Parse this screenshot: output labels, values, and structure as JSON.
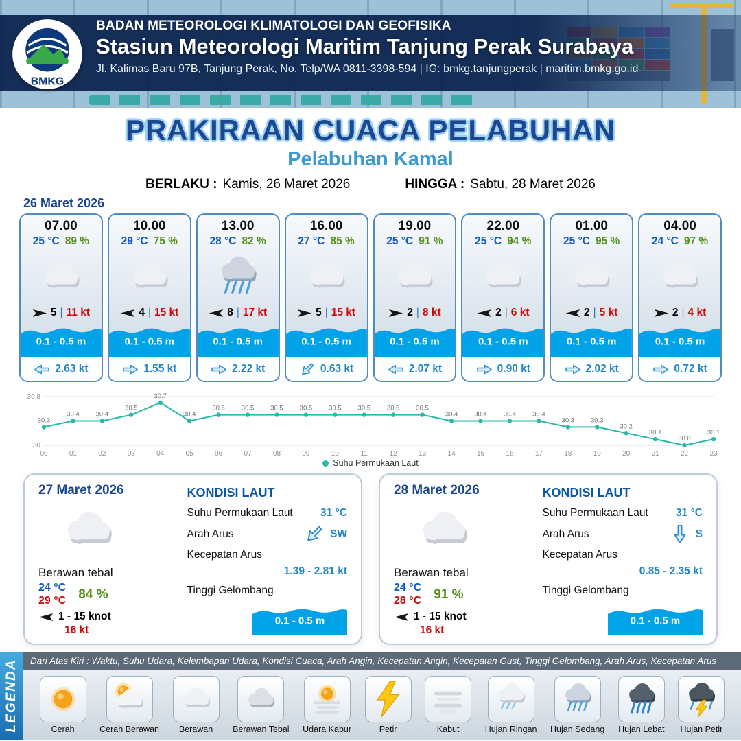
{
  "header": {
    "logo_text": "BMKG",
    "agency": "BADAN METEOROLOGI KLIMATOLOGI DAN GEOFISIKA",
    "station": "Stasiun Meteorologi Maritim Tanjung Perak Surabaya",
    "address": "Jl. Kalimas Baru 97B, Tanjung Perak, No. Telp/WA 0811-3398-594 | IG: bmkg.tanjungperak | maritim.bmkg.go.id"
  },
  "title": {
    "main": "PRAKIRAAN CUACA PELABUHAN",
    "port": "Pelabuhan Kamal",
    "valid_label": "BERLAKU :",
    "valid_value": "Kamis, 26 Maret 2026",
    "until_label": "HINGGA :",
    "until_value": "Sabtu, 28 Maret 2026"
  },
  "hourly": {
    "date": "26 Maret 2026",
    "cards": [
      {
        "time": "07.00",
        "temp": "25 °C",
        "humidity": "89 %",
        "icon": "berawan",
        "wind_dir": "E",
        "wind_num": "5",
        "wind_speed": "11 kt",
        "wave": "0.1 - 0.5 m",
        "current_dir": "W",
        "current_speed": "2.63 kt"
      },
      {
        "time": "10.00",
        "temp": "29 °C",
        "humidity": "75 %",
        "icon": "berawan",
        "wind_dir": "W",
        "wind_num": "4",
        "wind_speed": "15 kt",
        "wave": "0.1 - 0.5 m",
        "current_dir": "E",
        "current_speed": "1.55 kt"
      },
      {
        "time": "13.00",
        "temp": "28 °C",
        "humidity": "82 %",
        "icon": "hujan-sedang",
        "wind_dir": "W",
        "wind_num": "8",
        "wind_speed": "17 kt",
        "wave": "0.1 - 0.5 m",
        "current_dir": "E",
        "current_speed": "2.22 kt"
      },
      {
        "time": "16.00",
        "temp": "27 °C",
        "humidity": "85 %",
        "icon": "berawan",
        "wind_dir": "E",
        "wind_num": "5",
        "wind_speed": "15 kt",
        "wave": "0.1 - 0.5 m",
        "current_dir": "SW",
        "current_speed": "0.63 kt"
      },
      {
        "time": "19.00",
        "temp": "25 °C",
        "humidity": "91 %",
        "icon": "berawan",
        "wind_dir": "E",
        "wind_num": "2",
        "wind_speed": "8 kt",
        "wave": "0.1 - 0.5 m",
        "current_dir": "W",
        "current_speed": "2.07 kt"
      },
      {
        "time": "22.00",
        "temp": "25 °C",
        "humidity": "94 %",
        "icon": "berawan",
        "wind_dir": "W",
        "wind_num": "2",
        "wind_speed": "6 kt",
        "wave": "0.1 - 0.5 m",
        "current_dir": "E",
        "current_speed": "0.90 kt"
      },
      {
        "time": "01.00",
        "temp": "25 °C",
        "humidity": "95 %",
        "icon": "berawan",
        "wind_dir": "W",
        "wind_num": "2",
        "wind_speed": "5 kt",
        "wave": "0.1 - 0.5 m",
        "current_dir": "E",
        "current_speed": "2.02 kt"
      },
      {
        "time": "04.00",
        "temp": "24 °C",
        "humidity": "97 %",
        "icon": "berawan",
        "wind_dir": "E",
        "wind_num": "2",
        "wind_speed": "4 kt",
        "wave": "0.1 - 0.5 m",
        "current_dir": "E",
        "current_speed": "0.72 kt"
      }
    ]
  },
  "chart_data": {
    "type": "line",
    "legend": "Suhu Permukaan Laut",
    "x": [
      "00",
      "01",
      "02",
      "03",
      "04",
      "05",
      "06",
      "07",
      "08",
      "09",
      "10",
      "11",
      "12",
      "13",
      "14",
      "15",
      "16",
      "17",
      "18",
      "19",
      "20",
      "21",
      "22",
      "23"
    ],
    "values": [
      30.3,
      30.4,
      30.4,
      30.5,
      30.7,
      30.4,
      30.5,
      30.5,
      30.5,
      30.5,
      30.5,
      30.5,
      30.5,
      30.5,
      30.4,
      30.4,
      30.4,
      30.4,
      30.3,
      30.3,
      30.2,
      30.1,
      30.0,
      30.1
    ],
    "ylim": [
      30,
      30.8
    ],
    "yticks": [
      "30.8",
      "30"
    ],
    "line_color": "#29b9a8",
    "grid": true,
    "legend_position": "bottom"
  },
  "days": [
    {
      "date": "27 Maret 2026",
      "icon": "berawan",
      "condition": "Berawan tebal",
      "temp_min": "24 °C",
      "temp_max": "29 °C",
      "humidity": "84 %",
      "wind_dir": "W",
      "wind_range": "1 - 15 knot",
      "gust": "16 kt",
      "sea": {
        "title": "KONDISI LAUT",
        "sst_label": "Suhu Permukaan Laut",
        "sst": "31 °C",
        "current_dir_label": "Arah Arus",
        "current_dir": "SW",
        "current_speed_label": "Kecepatan Arus",
        "current_speed": "1.39 - 2.81 kt",
        "wave_label": "Tinggi Gelombang",
        "wave": "0.1 - 0.5 m"
      }
    },
    {
      "date": "28 Maret 2026",
      "icon": "berawan",
      "condition": "Berawan tebal",
      "temp_min": "24 °C",
      "temp_max": "28 °C",
      "humidity": "91 %",
      "wind_dir": "W",
      "wind_range": "1 - 15 knot",
      "gust": "16 kt",
      "sea": {
        "title": "KONDISI LAUT",
        "sst_label": "Suhu Permukaan Laut",
        "sst": "31 °C",
        "current_dir_label": "Arah Arus",
        "current_dir": "S",
        "current_speed_label": "Kecepatan Arus",
        "current_speed": "0.85 - 2.35 kt",
        "wave_label": "Tinggi Gelombang",
        "wave": "0.1 - 0.5 m"
      }
    }
  ],
  "legend": {
    "band": "LEGENDA",
    "note": "Dari Atas Kiri : Waktu, Suhu Udara, Kelembapan Udara, Kondisi Cuaca, Arah Angin, Kecepatan Angin, Kecepatan Gust, Tinggi Gelombang, Arah Arus, Kecepatan Arus",
    "items": [
      {
        "label": "Cerah",
        "icon": "cerah"
      },
      {
        "label": "Cerah Berawan",
        "icon": "cerah-berawan"
      },
      {
        "label": "Berawan",
        "icon": "berawan"
      },
      {
        "label": "Berawan Tebal",
        "icon": "berawan-tebal"
      },
      {
        "label": "Udara Kabur",
        "icon": "udara-kabur"
      },
      {
        "label": "Petir",
        "icon": "petir"
      },
      {
        "label": "Kabut",
        "icon": "kabut"
      },
      {
        "label": "Hujan Ringan",
        "icon": "hujan-ringan"
      },
      {
        "label": "Hujan Sedang",
        "icon": "hujan-sedang"
      },
      {
        "label": "Hujan Lebat",
        "icon": "hujan-lebat"
      },
      {
        "label": "Hujan Petir",
        "icon": "hujan-petir"
      }
    ]
  },
  "colors": {
    "accent_blue": "#1c4793",
    "light_blue": "#3d9ad2",
    "wave_blue": "#00a2e8",
    "value_blue": "#2187cc",
    "temp_blue": "#0b58c9",
    "humidity_green": "#55901c",
    "speed_red": "#d40808",
    "chart_teal": "#29b9a8"
  }
}
